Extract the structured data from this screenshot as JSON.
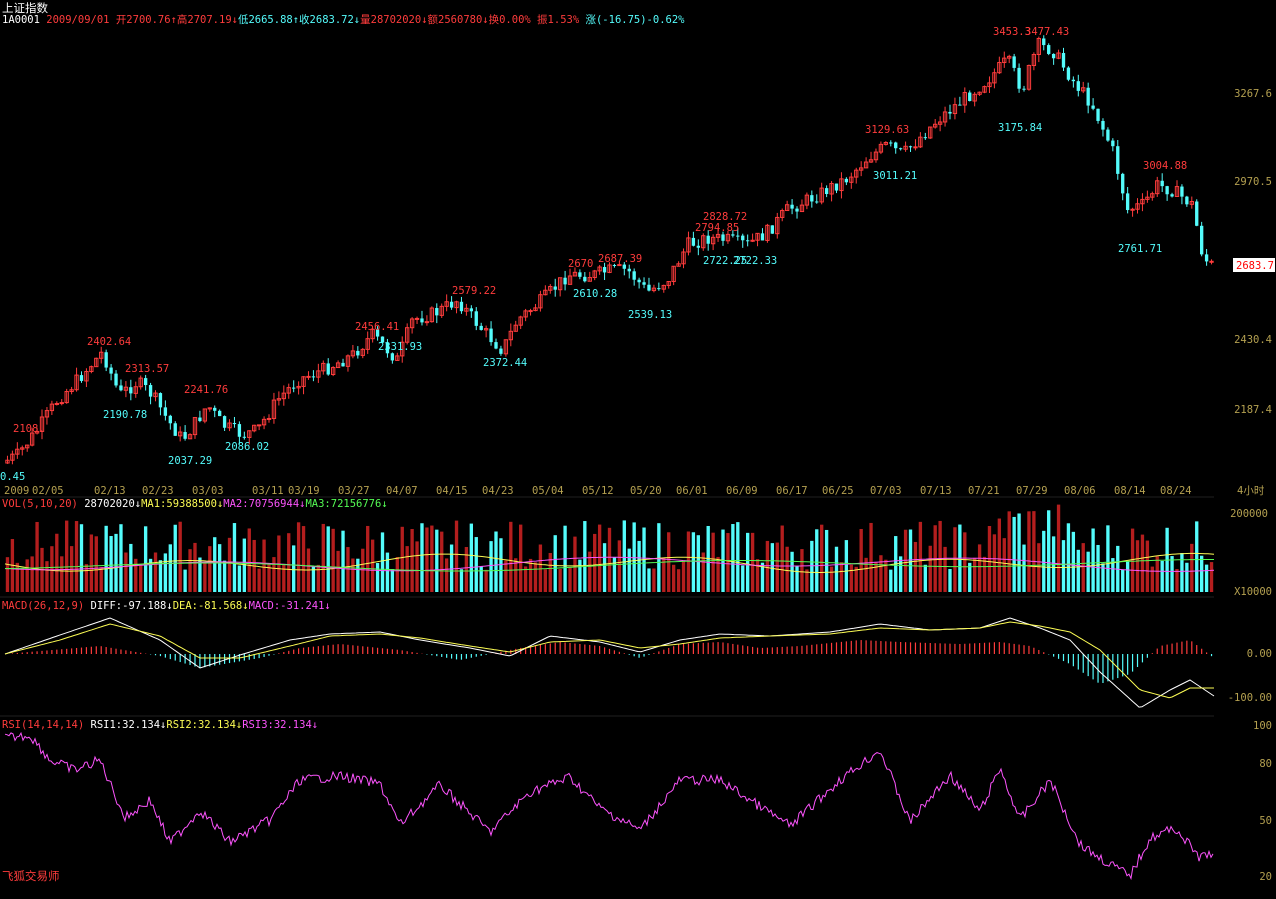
{
  "header": {
    "index_name": "上证指数",
    "code": "1A0001",
    "date": "2009/09/01",
    "open": "开2700.76↑",
    "high": "高2707.19↓",
    "low": "低2665.88↑",
    "close": "收2683.72↓",
    "volume": "量28702020↓",
    "amount": "额2560780↓",
    "turnover": "换0.00%",
    "amplitude": "振1.53%",
    "change": "涨(-16.75)-0.62%"
  },
  "vol_panel": {
    "title": "VOL(5,10,20)",
    "vol": "28702020↓",
    "ma1": "MA1:59388500↓",
    "ma2": "MA2:70756944↓",
    "ma3": "MA3:72156776↓",
    "axis_top": "200000",
    "axis_unit": "X10000"
  },
  "macd_panel": {
    "title": "MACD(26,12,9)",
    "diff": "DIFF:-97.188↓",
    "dea": "DEA:-81.568↓",
    "macd": "MACD:-31.241↓",
    "axis": [
      "0.00",
      "-100.00"
    ]
  },
  "rsi_panel": {
    "title": "RSI(14,14,14)",
    "rsi1": "RSI1:32.134↓",
    "rsi2": "RSI2:32.134↓",
    "rsi3": "RSI3:32.134↓",
    "axis": [
      "100",
      "80",
      "50",
      "20"
    ]
  },
  "price_axis": [
    "3267.6",
    "2970.5",
    "2683.7",
    "2430.4",
    "2187.4"
  ],
  "current_price_tag": "2683.7",
  "date_axis": [
    "2009",
    "02/05",
    "02/13",
    "02/23",
    "03/03",
    "03/11",
    "03/19",
    "03/27",
    "04/07",
    "04/15",
    "04/23",
    "05/04",
    "05/12",
    "05/20",
    "06/01",
    "06/09",
    "06/17",
    "06/25",
    "07/03",
    "07/13",
    "07/21",
    "07/29",
    "08/06",
    "08/14",
    "08/24"
  ],
  "period_label": "4小时",
  "peak_labels": [
    {
      "text": "2108.",
      "kind": "high"
    },
    {
      "text": "2402.64",
      "kind": "high"
    },
    {
      "text": "2313.57",
      "kind": "high"
    },
    {
      "text": "2241.76",
      "kind": "high"
    },
    {
      "text": "2456.41",
      "kind": "high"
    },
    {
      "text": "2579.22",
      "kind": "high"
    },
    {
      "text": "2670",
      "kind": "high"
    },
    {
      "text": "2687.39",
      "kind": "high"
    },
    {
      "text": "2794.85",
      "kind": "high"
    },
    {
      "text": "2828.72",
      "kind": "high"
    },
    {
      "text": "3129.63",
      "kind": "high"
    },
    {
      "text": "3453.3",
      "kind": "high"
    },
    {
      "text": "3477.43",
      "kind": "high"
    },
    {
      "text": "3004.88",
      "kind": "high"
    },
    {
      "text": "0.45",
      "kind": "low"
    },
    {
      "text": "2190.78",
      "kind": "low"
    },
    {
      "text": "2037.29",
      "kind": "low"
    },
    {
      "text": "2086.02",
      "kind": "low"
    },
    {
      "text": "2331.93",
      "kind": "low"
    },
    {
      "text": "2372.44",
      "kind": "low"
    },
    {
      "text": "2610.28",
      "kind": "low"
    },
    {
      "text": "2539.13",
      "kind": "low"
    },
    {
      "text": "2722.25",
      "kind": "low"
    },
    {
      "text": "2722.33",
      "kind": "low"
    },
    {
      "text": "3011.21",
      "kind": "low"
    },
    {
      "text": "3175.84",
      "kind": "low"
    },
    {
      "text": "2761.71",
      "kind": "low"
    }
  ],
  "brand": "飞狐交易师",
  "colors": {
    "up": "#ff3c3c",
    "down": "#54fcfc",
    "white": "#ffffff",
    "yellow": "#fcfc54",
    "magenta": "#fc54fc",
    "green": "#54fc54",
    "axis": "#b4a050"
  }
}
